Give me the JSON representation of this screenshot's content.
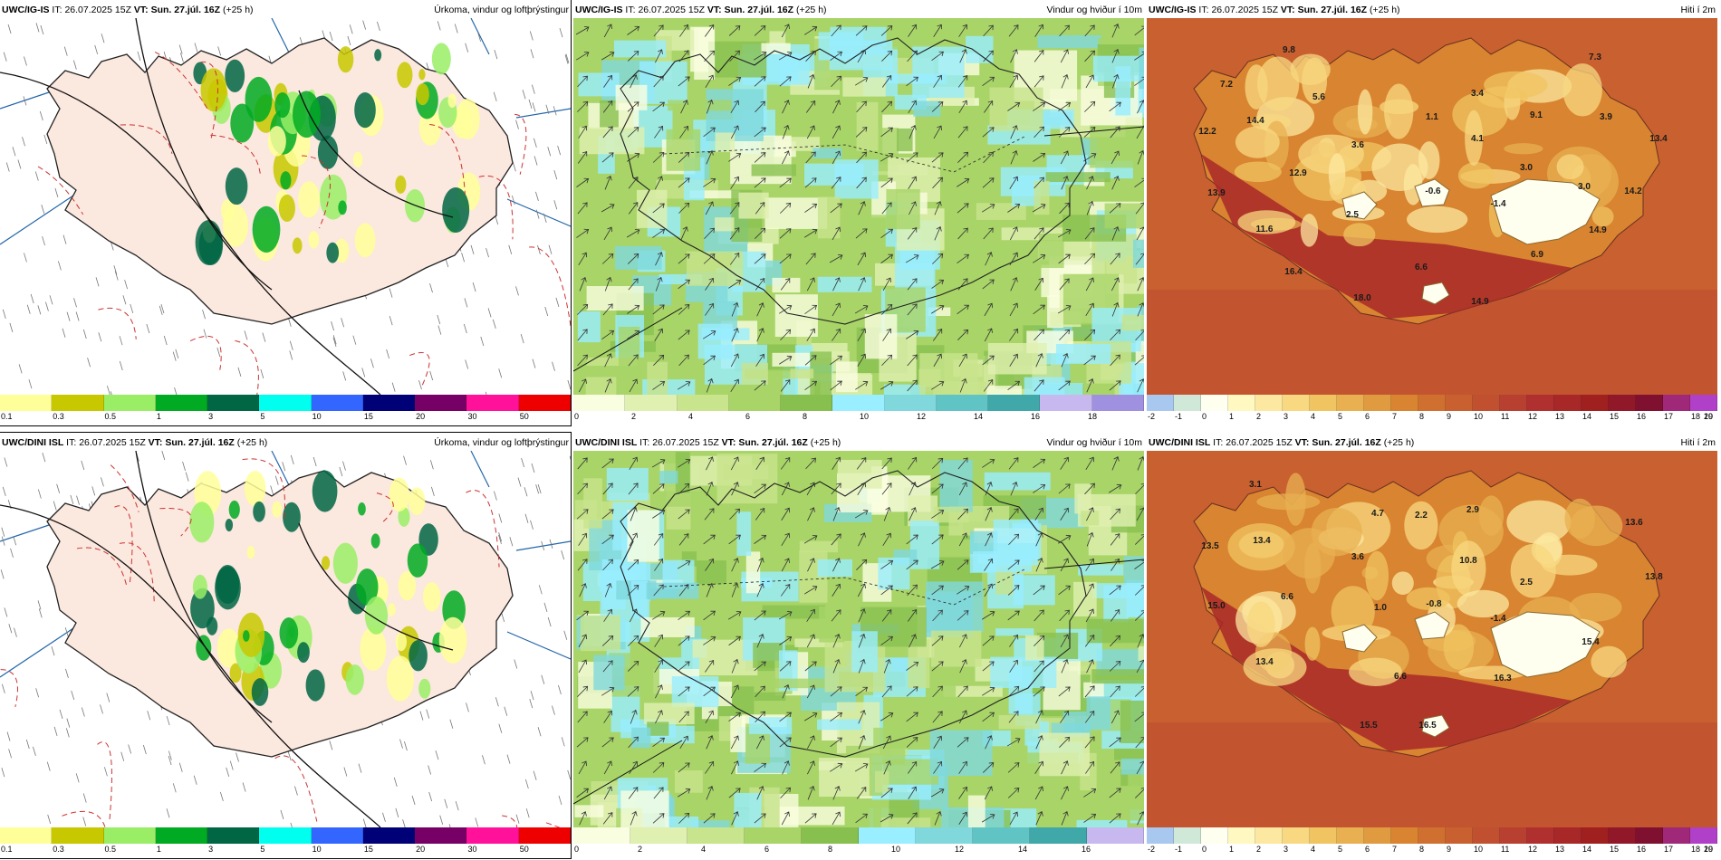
{
  "row1": {
    "precip": {
      "model": "UWC/IG-IS",
      "it_label": "IT:",
      "it": "26.07.2025 15Z",
      "vt_label": "VT:",
      "vt": "Sun. 27.júl. 16Z",
      "lead": "(+25 h)",
      "title": "Úrkoma, vindur og loftþrýstingur",
      "colorbar": {
        "colors": [
          "#ffff9a",
          "#c8c800",
          "#99ee66",
          "#00aa22",
          "#006644",
          "#00ffee",
          "#3366ff",
          "#000077",
          "#770066",
          "#ff1199",
          "#ee0000"
        ],
        "ticks": [
          "0.1",
          "0.3",
          "0.5",
          "1",
          "3",
          "5",
          "10",
          "15",
          "20",
          "30",
          "50"
        ]
      }
    },
    "wind": {
      "model": "UWC/IG-IS",
      "it_label": "IT:",
      "it": "26.07.2025 15Z",
      "vt_label": "VT:",
      "vt": "Sun. 27.júl. 16Z",
      "lead": "(+25 h)",
      "title": "Vindur og hviður í 10m",
      "colorbar": {
        "colors": [
          "#fafee0",
          "#e0f0b0",
          "#c8e48c",
          "#a8d468",
          "#88c050",
          "#99eeff",
          "#80d8dc",
          "#60c4c4",
          "#40a8a8",
          "#c8b8f0",
          "#a090e0"
        ],
        "ticks": [
          "0",
          "2",
          "4",
          "6",
          "8",
          "10",
          "12",
          "14",
          "16",
          "18"
        ]
      }
    },
    "temp": {
      "model": "UWC/IG-IS",
      "it_label": "IT:",
      "it": "26.07.2025 15Z",
      "vt_label": "VT:",
      "vt": "Sun. 27.júl. 16Z",
      "lead": "(+25 h)",
      "title": "Hiti í 2m",
      "colorbar": {
        "colors": [
          "#a8c8f0",
          "#d0e8d8",
          "#fffff0",
          "#fff8c0",
          "#fce8a0",
          "#f8d880",
          "#f0c460",
          "#e8b050",
          "#e09a40",
          "#d88430",
          "#d07030",
          "#c86030",
          "#c05030",
          "#b84030",
          "#b03030",
          "#a82828",
          "#a02020",
          "#901828",
          "#801030",
          "#a02878",
          "#b040c8"
        ],
        "ticks": [
          "-2",
          "-1",
          "0",
          "1",
          "2",
          "3",
          "4",
          "5",
          "6",
          "7",
          "8",
          "9",
          "10",
          "11",
          "12",
          "13",
          "14",
          "15",
          "16",
          "17",
          "18",
          "19",
          "20"
        ]
      },
      "values": [
        {
          "t": "9.8",
          "x": 157,
          "y": 38
        },
        {
          "t": "7.3",
          "x": 495,
          "y": 46
        },
        {
          "t": "7.2",
          "x": 88,
          "y": 76
        },
        {
          "t": "5.6",
          "x": 190,
          "y": 90
        },
        {
          "t": "3.4",
          "x": 365,
          "y": 86
        },
        {
          "t": "14.4",
          "x": 120,
          "y": 116
        },
        {
          "t": "1.1",
          "x": 315,
          "y": 112
        },
        {
          "t": "9.1",
          "x": 430,
          "y": 110
        },
        {
          "t": "3.9",
          "x": 507,
          "y": 112
        },
        {
          "t": "12.2",
          "x": 67,
          "y": 128
        },
        {
          "t": "3.6",
          "x": 233,
          "y": 143
        },
        {
          "t": "4.1",
          "x": 365,
          "y": 136
        },
        {
          "t": "13.4",
          "x": 565,
          "y": 136
        },
        {
          "t": "3.0",
          "x": 419,
          "y": 168
        },
        {
          "t": "12.9",
          "x": 167,
          "y": 174
        },
        {
          "t": "3.0",
          "x": 483,
          "y": 189
        },
        {
          "t": "13.9",
          "x": 77,
          "y": 196
        },
        {
          "t": "-0.6",
          "x": 316,
          "y": 194
        },
        {
          "t": "14.2",
          "x": 537,
          "y": 194
        },
        {
          "t": "-1.4",
          "x": 388,
          "y": 208
        },
        {
          "t": "2.5",
          "x": 227,
          "y": 220
        },
        {
          "t": "11.6",
          "x": 130,
          "y": 236
        },
        {
          "t": "14.9",
          "x": 498,
          "y": 237
        },
        {
          "t": "6.9",
          "x": 431,
          "y": 264
        },
        {
          "t": "6.6",
          "x": 303,
          "y": 278
        },
        {
          "t": "16.4",
          "x": 162,
          "y": 283
        },
        {
          "t": "18.0",
          "x": 238,
          "y": 312
        },
        {
          "t": "14.9",
          "x": 368,
          "y": 316
        }
      ]
    }
  },
  "row2": {
    "precip": {
      "model": "UWC/DINI ISL",
      "it_label": "IT:",
      "it": "26.07.2025 15Z",
      "vt_label": "VT:",
      "vt": "Sun. 27.júl. 16Z",
      "lead": "(+25 h)",
      "title": "Úrkoma, vindur og loftþrýstingur",
      "colorbar": {
        "colors": [
          "#ffff9a",
          "#c8c800",
          "#99ee66",
          "#00aa22",
          "#006644",
          "#00ffee",
          "#3366ff",
          "#000077",
          "#770066",
          "#ff1199",
          "#ee0000"
        ],
        "ticks": [
          "0.1",
          "0.3",
          "0.5",
          "1",
          "3",
          "5",
          "10",
          "15",
          "20",
          "30",
          "50"
        ]
      }
    },
    "wind": {
      "model": "UWC/DINI ISL",
      "it_label": "IT:",
      "it": "26.07.2025 15Z",
      "vt_label": "VT:",
      "vt": "Sun. 27.júl. 16Z",
      "lead": "(+25 h)",
      "title": "Vindur og hviður í 10m",
      "colorbar": {
        "colors": [
          "#fafee0",
          "#e0f0b0",
          "#c8e48c",
          "#a8d468",
          "#88c050",
          "#99eeff",
          "#80d8dc",
          "#60c4c4",
          "#40a8a8",
          "#c8b8f0"
        ],
        "ticks": [
          "0",
          "2",
          "4",
          "6",
          "8",
          "10",
          "12",
          "14",
          "16"
        ]
      }
    },
    "temp": {
      "model": "UWC/DINI ISL",
      "it_label": "IT:",
      "it": "26.07.2025 15Z",
      "vt_label": "VT:",
      "vt": "Sun. 27.júl. 16Z",
      "lead": "(+25 h)",
      "title": "Hiti í 2m",
      "colorbar": {
        "colors": [
          "#a8c8f0",
          "#d0e8d8",
          "#fffff0",
          "#fff8c0",
          "#fce8a0",
          "#f8d880",
          "#f0c460",
          "#e8b050",
          "#e09a40",
          "#d88430",
          "#d07030",
          "#c86030",
          "#c05030",
          "#b84030",
          "#b03030",
          "#a82828",
          "#a02020",
          "#901828",
          "#801030",
          "#a02878",
          "#b040c8"
        ],
        "ticks": [
          "-2",
          "-1",
          "0",
          "1",
          "2",
          "3",
          "4",
          "5",
          "6",
          "7",
          "8",
          "9",
          "10",
          "11",
          "12",
          "13",
          "14",
          "15",
          "16",
          "17",
          "18",
          "19",
          "20"
        ]
      },
      "values": [
        {
          "t": "3.1",
          "x": 120,
          "y": 40
        },
        {
          "t": "4.7",
          "x": 255,
          "y": 72
        },
        {
          "t": "2.2",
          "x": 303,
          "y": 74
        },
        {
          "t": "2.9",
          "x": 360,
          "y": 68
        },
        {
          "t": "13.6",
          "x": 538,
          "y": 82
        },
        {
          "t": "13.4",
          "x": 127,
          "y": 102
        },
        {
          "t": "13.5",
          "x": 70,
          "y": 108
        },
        {
          "t": "3.6",
          "x": 233,
          "y": 120
        },
        {
          "t": "10.8",
          "x": 355,
          "y": 124
        },
        {
          "t": "13.8",
          "x": 560,
          "y": 142
        },
        {
          "t": "2.5",
          "x": 419,
          "y": 148
        },
        {
          "t": "6.6",
          "x": 155,
          "y": 164
        },
        {
          "t": "15.0",
          "x": 77,
          "y": 174
        },
        {
          "t": "1.0",
          "x": 258,
          "y": 176
        },
        {
          "t": "-0.8",
          "x": 317,
          "y": 172
        },
        {
          "t": "-1.4",
          "x": 388,
          "y": 188
        },
        {
          "t": "15.4",
          "x": 490,
          "y": 214
        },
        {
          "t": "13.4",
          "x": 130,
          "y": 236
        },
        {
          "t": "6.6",
          "x": 280,
          "y": 252
        },
        {
          "t": "16.3",
          "x": 393,
          "y": 254
        },
        {
          "t": "15.5",
          "x": 245,
          "y": 306
        },
        {
          "t": "16.5",
          "x": 310,
          "y": 306
        }
      ]
    }
  }
}
